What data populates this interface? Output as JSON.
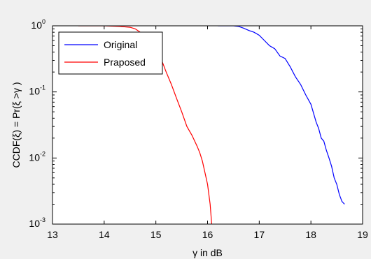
{
  "chart_data": {
    "type": "line",
    "xlabel": "γ in dB",
    "ylabel": "CCDF(ξ) = Pr(ξ >γ )",
    "xlim": [
      13,
      19
    ],
    "ylim": [
      0.001,
      1
    ],
    "yscale": "log",
    "grid": false,
    "legend_position": "top-left",
    "x_ticks": [
      {
        "value": 13,
        "label": "13"
      },
      {
        "value": 14,
        "label": "14"
      },
      {
        "value": 15,
        "label": "15"
      },
      {
        "value": 16,
        "label": "16"
      },
      {
        "value": 17,
        "label": "17"
      },
      {
        "value": 18,
        "label": "18"
      },
      {
        "value": 19,
        "label": "19"
      }
    ],
    "y_ticks": [
      {
        "value": 1,
        "base": "10",
        "exp": "0"
      },
      {
        "value": 0.1,
        "base": "10",
        "exp": "-1"
      },
      {
        "value": 0.01,
        "base": "10",
        "exp": "-2"
      },
      {
        "value": 0.001,
        "base": "10",
        "exp": "-3"
      }
    ],
    "series": [
      {
        "name": "Original",
        "color": "#0000ff",
        "x": [
          16.2,
          16.3,
          16.4,
          16.5,
          16.6,
          16.7,
          16.8,
          16.9,
          17.0,
          17.1,
          17.2,
          17.3,
          17.4,
          17.5,
          17.6,
          17.7,
          17.8,
          17.9,
          18.0,
          18.1,
          18.15,
          18.2,
          18.25,
          18.3,
          18.35,
          18.4,
          18.45,
          18.5,
          18.55,
          18.6,
          18.65
        ],
        "y": [
          1.0,
          1.0,
          1.0,
          1.0,
          0.98,
          0.92,
          0.85,
          0.8,
          0.72,
          0.6,
          0.5,
          0.45,
          0.35,
          0.32,
          0.24,
          0.17,
          0.13,
          0.09,
          0.065,
          0.035,
          0.028,
          0.02,
          0.018,
          0.013,
          0.01,
          0.0075,
          0.005,
          0.004,
          0.0028,
          0.0022,
          0.002
        ]
      },
      {
        "name": "Praposed",
        "color": "#ff0000",
        "x": [
          13.5,
          14.0,
          14.3,
          14.5,
          14.6,
          14.7,
          14.8,
          14.9,
          15.0,
          15.1,
          15.2,
          15.3,
          15.4,
          15.5,
          15.6,
          15.7,
          15.8,
          15.85,
          15.9,
          15.95,
          16.0,
          16.05,
          16.08
        ],
        "y": [
          1.0,
          1.0,
          0.98,
          0.95,
          0.9,
          0.8,
          0.7,
          0.58,
          0.45,
          0.32,
          0.2,
          0.13,
          0.08,
          0.05,
          0.03,
          0.022,
          0.015,
          0.012,
          0.009,
          0.006,
          0.004,
          0.002,
          0.001
        ]
      }
    ]
  }
}
